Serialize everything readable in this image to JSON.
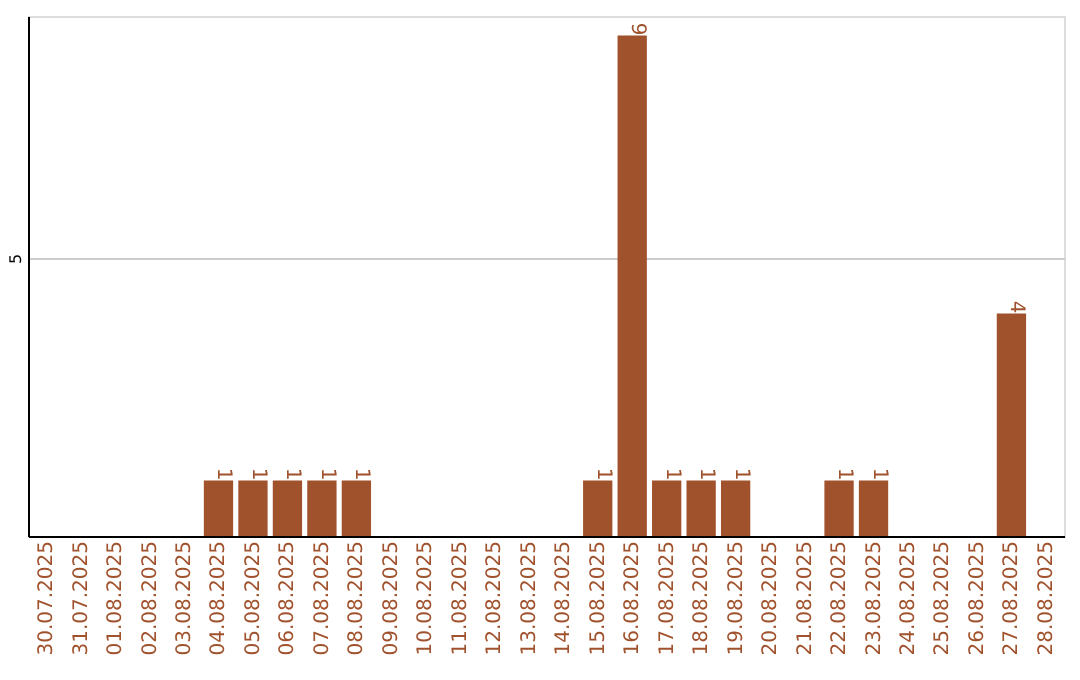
{
  "chart_data": {
    "type": "bar",
    "categories": [
      "30.07.2025",
      "31.07.2025",
      "01.08.2025",
      "02.08.2025",
      "03.08.2025",
      "04.08.2025",
      "05.08.2025",
      "06.08.2025",
      "07.08.2025",
      "08.08.2025",
      "09.08.2025",
      "10.08.2025",
      "11.08.2025",
      "12.08.2025",
      "13.08.2025",
      "14.08.2025",
      "15.08.2025",
      "16.08.2025",
      "17.08.2025",
      "18.08.2025",
      "19.08.2025",
      "20.08.2025",
      "21.08.2025",
      "22.08.2025",
      "23.08.2025",
      "24.08.2025",
      "25.08.2025",
      "26.08.2025",
      "27.08.2025",
      "28.08.2025"
    ],
    "values": [
      0,
      0,
      0,
      0,
      0,
      1,
      1,
      1,
      1,
      1,
      0,
      0,
      0,
      0,
      0,
      0,
      1,
      9,
      1,
      1,
      1,
      0,
      0,
      1,
      1,
      0,
      0,
      0,
      4,
      0
    ],
    "value_labels": [
      null,
      null,
      null,
      null,
      null,
      "1",
      "1",
      "1",
      "1",
      "1",
      null,
      null,
      null,
      null,
      null,
      null,
      "1",
      "9",
      "1",
      "1",
      "1",
      null,
      null,
      "1",
      "1",
      null,
      null,
      null,
      "4",
      null
    ],
    "color": "#a0522d",
    "ylim": [
      0,
      9.35
    ],
    "yticks": [
      5
    ],
    "grid": "y"
  }
}
